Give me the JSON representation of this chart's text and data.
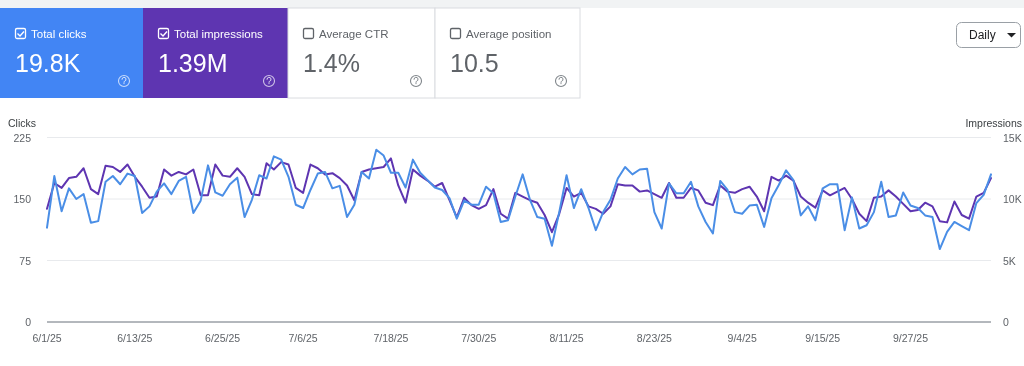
{
  "chart_data": [
    {
      "type": "other",
      "categories": [
        "Total clicks",
        "Total impressions",
        "Average CTR",
        "Average position"
      ],
      "value_labels": [
        "19.8K",
        "1.39M",
        "1.4%",
        "10.5"
      ],
      "colors": [
        "#4285f4",
        "#5e35b1",
        null,
        null
      ],
      "annotations": [
        "Daily"
      ]
    },
    {
      "type": "line",
      "ylabel": "Clicks",
      "y2label": "Impressions",
      "x": [
        "--06-01",
        "--06-02",
        "--06-03",
        "--06-04",
        "--06-05",
        "--06-06",
        "--06-07",
        "--06-08",
        "--06-09",
        "--06-10",
        "--06-11",
        "--06-12",
        "--06-13",
        "--06-14",
        "--06-15",
        "--06-16",
        "--06-17",
        "--06-18",
        "--06-19",
        "--06-20",
        "--06-21",
        "--06-22",
        "--06-23",
        "--06-24",
        "--06-25",
        "--06-26",
        "--06-27",
        "--06-28",
        "--06-29",
        "--06-30",
        "--07-01",
        "--07-02",
        "--07-03",
        "--07-04",
        "--07-05",
        "--07-06",
        "--07-07",
        "--07-08",
        "--07-09",
        "--07-10",
        "--07-11",
        "--07-12",
        "--07-13",
        "--07-14",
        "--07-15",
        "--07-16",
        "--07-17",
        "--07-18",
        "--07-19",
        "--07-20",
        "--07-21",
        "--07-22",
        "--07-23",
        "--07-24",
        "--07-25",
        "--07-26",
        "--07-27",
        "--07-28",
        "--07-29",
        "--07-30",
        "--07-31",
        "--08-01",
        "--08-02",
        "--08-03",
        "--08-04",
        "--08-05",
        "--08-06",
        "--08-07",
        "--08-08",
        "--08-09",
        "--08-10",
        "--08-11",
        "--08-12",
        "--08-13",
        "--08-14",
        "--08-15",
        "--08-16",
        "--08-17",
        "--08-18",
        "--08-19",
        "--08-20",
        "--08-21",
        "--08-22",
        "--08-23",
        "--08-24",
        "--08-25",
        "--08-26",
        "--08-27",
        "--08-28",
        "--08-29",
        "--08-30",
        "--08-31",
        "--09-01",
        "--09-02",
        "--09-03",
        "--09-04",
        "--09-05",
        "--09-06",
        "--09-07",
        "--09-08",
        "--09-09",
        "--09-10",
        "--09-11",
        "--09-12",
        "--09-13",
        "--09-14",
        "--09-15",
        "--09-16",
        "--09-17",
        "--09-18",
        "--09-19",
        "--09-20",
        "--09-21",
        "--09-22",
        "--09-23",
        "--09-24",
        "--09-25",
        "--09-26",
        "--09-27",
        "--09-28",
        "--09-29",
        "--09-30",
        "--10-01",
        "--10-02",
        "--10-03",
        "--10-04",
        "--10-05",
        "--10-06",
        "--10-07",
        "--10-08"
      ],
      "series": [
        {
          "color": "#5e35b1",
          "axis": "y2",
          "values": [
            9200,
            11300,
            10900,
            11700,
            11800,
            12500,
            10800,
            10400,
            12700,
            12600,
            12200,
            12800,
            11800,
            11000,
            10100,
            10200,
            12400,
            11900,
            12200,
            12000,
            12400,
            10300,
            10300,
            12800,
            11900,
            11800,
            12500,
            11800,
            10400,
            10300,
            12900,
            12400,
            13000,
            12800,
            10900,
            10500,
            12800,
            12500,
            12000,
            12100,
            11700,
            11100,
            9900,
            12200,
            12400,
            12500,
            12600,
            13300,
            11100,
            9700,
            12400,
            11900,
            11500,
            11000,
            11300,
            9900,
            8500,
            10100,
            9500,
            9200,
            9500,
            10800,
            8800,
            8400,
            10500,
            10200,
            9900,
            9700,
            8700,
            7300,
            8800,
            10900,
            10200,
            10500,
            9400,
            9200,
            8800,
            9400,
            11200,
            11100,
            11100,
            10600,
            10700,
            10400,
            10100,
            11300,
            10100,
            10100,
            10900,
            10700,
            9700,
            9500,
            11100,
            10600,
            10500,
            10800,
            11000,
            10200,
            9000,
            11800,
            11500,
            11900,
            11500,
            10200,
            9700,
            9300,
            10700,
            10300,
            10600,
            10900,
            10000,
            8800,
            8200,
            10100,
            10200,
            10700,
            10200,
            9600,
            9000,
            9100,
            9700,
            9400,
            8200,
            8100,
            9800,
            8700,
            8400,
            10200,
            10500,
            11700
          ]
        },
        {
          "color": "#4a8ee6",
          "values": [
            115,
            178,
            135,
            163,
            150,
            156,
            121,
            123,
            171,
            178,
            168,
            181,
            178,
            133,
            141,
            159,
            169,
            156,
            172,
            177,
            133,
            148,
            191,
            158,
            154,
            168,
            176,
            128,
            149,
            179,
            175,
            202,
            198,
            177,
            143,
            139,
            161,
            181,
            183,
            163,
            166,
            128,
            143,
            183,
            175,
            210,
            203,
            182,
            182,
            164,
            198,
            182,
            173,
            164,
            161,
            151,
            126,
            148,
            143,
            143,
            165,
            157,
            122,
            124,
            153,
            180,
            149,
            128,
            126,
            93,
            134,
            179,
            139,
            162,
            139,
            112,
            134,
            149,
            175,
            189,
            180,
            186,
            187,
            134,
            114,
            169,
            157,
            157,
            171,
            141,
            122,
            108,
            172,
            161,
            134,
            132,
            142,
            143,
            116,
            151,
            167,
            185,
            173,
            130,
            141,
            124,
            163,
            168,
            168,
            112,
            152,
            114,
            118,
            134,
            171,
            128,
            130,
            158,
            142,
            139,
            130,
            128,
            89,
            110,
            122,
            117,
            112,
            145,
            155,
            180
          ]
        }
      ],
      "ylim": [
        0,
        225
      ],
      "yticks": [
        0,
        75,
        150,
        225
      ],
      "y2lim": [
        0,
        15000
      ],
      "y2ticks": [
        0,
        {
          "value": 5000,
          "label": "5K"
        },
        {
          "value": 10000,
          "label": "10K"
        },
        {
          "value": 15000,
          "label": "15K"
        }
      ],
      "xlim": [
        "--06-01",
        "--10-08"
      ],
      "xticks": [
        {
          "value": "--06-01",
          "label": "6/1/25"
        },
        {
          "value": "--06-13",
          "label": "6/13/25"
        },
        {
          "value": "--06-25",
          "label": "6/25/25"
        },
        {
          "value": "--07-06",
          "label": "7/6/25"
        },
        {
          "value": "--07-18",
          "label": "7/18/25"
        },
        {
          "value": "--07-30",
          "label": "7/30/25"
        },
        {
          "value": "--08-11",
          "label": "8/11/25"
        },
        {
          "value": "--08-23",
          "label": "8/23/25"
        },
        {
          "value": "--09-04",
          "label": "9/4/25"
        },
        {
          "value": "--09-15",
          "label": "9/15/25"
        },
        {
          "value": "--09-27",
          "label": "9/27/25"
        }
      ],
      "grid": "y",
      "marker": "none",
      "line_style": "solid"
    }
  ]
}
